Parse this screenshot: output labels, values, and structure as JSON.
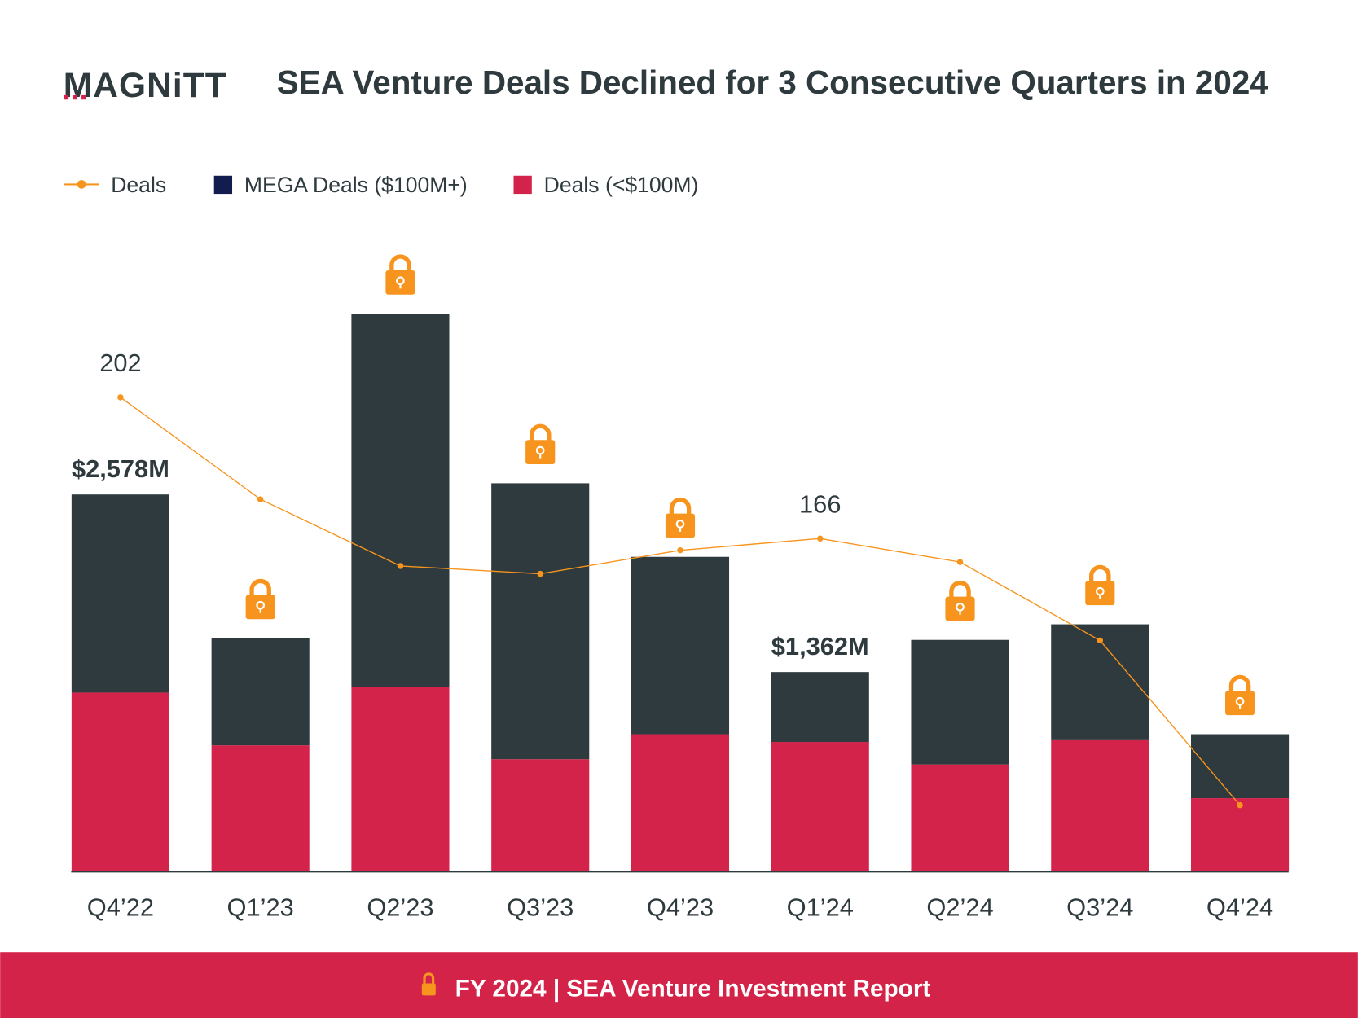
{
  "logo": "MAGNiTT",
  "title": "SEA Venture Deals Declined for 3 Consecutive Quarters in 2024",
  "footer": "FY 2024 | SEA Venture Investment Report",
  "colors": {
    "mega": "#2e3a3d",
    "mega_legend": "#131c4f",
    "small": "#d4234a",
    "line": "#f7941d",
    "footer": "#d42349",
    "lock": "#f7941d"
  },
  "chart_data": {
    "type": "bar",
    "stacked": true,
    "categories": [
      "Q4’22",
      "Q1’23",
      "Q2’23",
      "Q3’23",
      "Q4’23",
      "Q1’24",
      "Q2’24",
      "Q3’24",
      "Q4’24"
    ],
    "series": [
      {
        "name": "Deals (<$100M)",
        "values": [
          1221,
          860,
          1262,
          765,
          936,
          883,
          729,
          895,
          498
        ]
      },
      {
        "name": "MEGA Deals ($100M+)",
        "values": [
          1357,
          734,
          2555,
          1890,
          1215,
          479,
          853,
          794,
          438
        ]
      }
    ],
    "line_series": {
      "name": "Deals",
      "values": [
        202,
        176,
        159,
        157,
        163,
        166,
        160,
        140,
        98
      ]
    },
    "total_labels": {
      "0": "$2,578M",
      "5": "$1,362M"
    },
    "line_labels": {
      "0": "202",
      "5": "166"
    },
    "locked": [
      false,
      true,
      true,
      true,
      true,
      false,
      true,
      true,
      true
    ],
    "legend": [
      "Deals",
      "MEGA Deals ($100M+)",
      "Deals (<$100M)"
    ],
    "legend_position": "top-left",
    "grid": false,
    "ylim": [
      0,
      4000
    ]
  }
}
